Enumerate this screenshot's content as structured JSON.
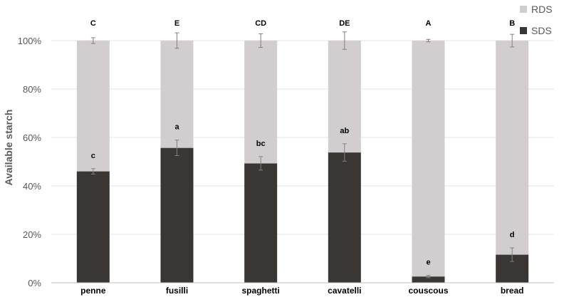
{
  "chart_data": {
    "type": "bar",
    "stacked": true,
    "ylabel": "Available starch",
    "xlabel": "",
    "ylim": [
      0,
      100
    ],
    "y_ticks": [
      "0%",
      "20%",
      "40%",
      "60%",
      "80%",
      "100%"
    ],
    "categories": [
      "penne",
      "fusilli",
      "spaghetti",
      "cavatelli",
      "couscous",
      "bread"
    ],
    "series": [
      {
        "name": "SDS",
        "color": "#3a3633",
        "values": [
          46,
          55.7,
          49.3,
          53.8,
          2.6,
          11.6
        ],
        "errors": [
          1.1,
          3.2,
          2.8,
          3.6,
          0.5,
          2.8
        ],
        "labels": [
          "c",
          "a",
          "bc",
          "ab",
          "e",
          "d"
        ]
      },
      {
        "name": "RDS",
        "color": "#d2ced0",
        "values": [
          54,
          44.3,
          50.7,
          46.2,
          97.4,
          88.4
        ],
        "errors": [
          1.2,
          3.2,
          2.8,
          3.6,
          0.5,
          2.6
        ],
        "labels": [
          "C",
          "E",
          "CD",
          "DE",
          "A",
          "B"
        ]
      }
    ],
    "grid": true,
    "legend": "top-right"
  }
}
